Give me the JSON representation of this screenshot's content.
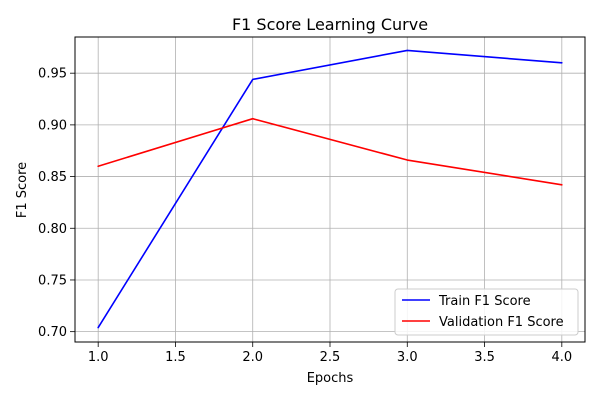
{
  "chart_data": {
    "type": "line",
    "title": "F1 Score Learning Curve",
    "xlabel": "Epochs",
    "ylabel": "F1 Score",
    "x": [
      1,
      2,
      3,
      4
    ],
    "xlim": [
      0.85,
      4.15
    ],
    "ylim": [
      0.69,
      0.985
    ],
    "xticks": [
      1.0,
      1.5,
      2.0,
      2.5,
      3.0,
      3.5,
      4.0
    ],
    "xtick_labels": [
      "1.0",
      "1.5",
      "2.0",
      "2.5",
      "3.0",
      "3.5",
      "4.0"
    ],
    "yticks": [
      0.7,
      0.75,
      0.8,
      0.85,
      0.9,
      0.95
    ],
    "ytick_labels": [
      "0.70",
      "0.75",
      "0.80",
      "0.85",
      "0.90",
      "0.95"
    ],
    "grid": true,
    "legend_position": "bottom-right",
    "series": [
      {
        "name": "Train F1 Score",
        "color": "#0000ff",
        "values": [
          0.704,
          0.944,
          0.972,
          0.96
        ]
      },
      {
        "name": "Validation F1 Score",
        "color": "#ff0000",
        "values": [
          0.86,
          0.906,
          0.866,
          0.842
        ]
      }
    ]
  }
}
